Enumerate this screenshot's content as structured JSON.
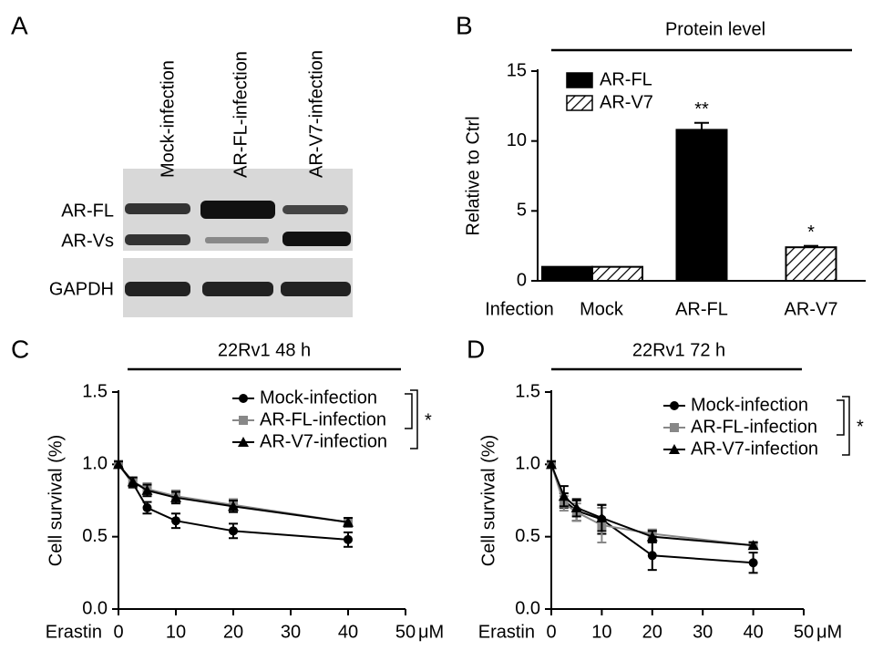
{
  "blot": {
    "panel_label": "A",
    "lanes": [
      "Mock-infection",
      "AR-FL-infection",
      "AR-V7-infection"
    ],
    "bands": [
      "AR-FL",
      "AR-Vs",
      "GAPDH"
    ]
  },
  "chart_data": [
    {
      "type": "bar",
      "panel_label": "B",
      "title": "Protein level",
      "ylabel": "Relative to Ctrl",
      "xlabel": "Infection",
      "categories": [
        "Mock",
        "AR-FL",
        "AR-V7"
      ],
      "series": [
        {
          "name": "AR-FL",
          "color": "#000000",
          "pattern": "solid",
          "values": [
            1,
            10.8,
            null
          ],
          "errors": [
            null,
            0.5,
            null
          ],
          "stars": [
            null,
            "**",
            null
          ]
        },
        {
          "name": "AR-V7",
          "color": "#000000",
          "pattern": "hatch",
          "values": [
            1,
            null,
            2.4
          ],
          "errors": [
            null,
            null,
            0.1
          ],
          "stars": [
            null,
            null,
            "*"
          ]
        }
      ],
      "ylim": [
        0,
        15
      ],
      "yticks": [
        0,
        5,
        10,
        15
      ]
    },
    {
      "type": "line",
      "panel_label": "C",
      "title": "22Rv1 48 h",
      "ylabel": "Cell survival (%)",
      "xlabel": "Erastin",
      "x_unit": "μM",
      "x": [
        0,
        2.5,
        5,
        10,
        20,
        40
      ],
      "series": [
        {
          "name": "Mock-infection",
          "color": "#000000",
          "marker": "circle",
          "values": [
            1,
            0.87,
            0.7,
            0.61,
            0.54,
            0.48
          ],
          "errors": [
            0.02,
            0.03,
            0.04,
            0.05,
            0.05,
            0.05
          ]
        },
        {
          "name": "AR-FL-infection",
          "color": "#888888",
          "marker": "square",
          "values": [
            1,
            0.88,
            0.83,
            0.78,
            0.72,
            0.6
          ],
          "errors": [
            0.02,
            0.03,
            0.04,
            0.04,
            0.04,
            0.03
          ]
        },
        {
          "name": "AR-V7-infection",
          "color": "#000000",
          "marker": "triangle",
          "values": [
            1,
            0.88,
            0.82,
            0.77,
            0.71,
            0.6
          ],
          "errors": [
            0.02,
            0.03,
            0.04,
            0.04,
            0.04,
            0.03
          ]
        }
      ],
      "significance": "*",
      "xlim": [
        0,
        50
      ],
      "xticks": [
        0,
        10,
        20,
        30,
        40,
        50
      ],
      "ylim": [
        0,
        1.5
      ],
      "yticks": [
        {
          "value": 0,
          "label": "0.0"
        },
        {
          "value": 0.5,
          "label": "0.5"
        },
        {
          "value": 1,
          "label": "1.0"
        },
        {
          "value": 1.5,
          "label": "1.5"
        }
      ]
    },
    {
      "type": "line",
      "panel_label": "D",
      "title": "22Rv1 72 h",
      "ylabel": "Cell survival (%)",
      "xlabel": "Erastin",
      "x_unit": "μM",
      "x": [
        0,
        2.5,
        5,
        10,
        20,
        40
      ],
      "series": [
        {
          "name": "Mock-infection",
          "color": "#000000",
          "marker": "circle",
          "values": [
            1,
            0.75,
            0.68,
            0.62,
            0.37,
            0.32
          ],
          "errors": [
            0.02,
            0.05,
            0.07,
            0.1,
            0.1,
            0.07
          ]
        },
        {
          "name": "AR-FL-infection",
          "color": "#888888",
          "marker": "square",
          "values": [
            1,
            0.73,
            0.67,
            0.58,
            0.52,
            0.44
          ],
          "errors": [
            0.02,
            0.05,
            0.06,
            0.12,
            0.03,
            0.02
          ]
        },
        {
          "name": "AR-V7-infection",
          "color": "#000000",
          "marker": "triangle",
          "values": [
            1,
            0.78,
            0.7,
            0.63,
            0.5,
            0.44
          ],
          "errors": [
            0.02,
            0.07,
            0.06,
            0.09,
            0.04,
            0.02
          ]
        }
      ],
      "significance": "*",
      "xlim": [
        0,
        50
      ],
      "xticks": [
        0,
        10,
        20,
        30,
        40,
        50
      ],
      "ylim": [
        0,
        1.5
      ],
      "yticks": [
        {
          "value": 0,
          "label": "0.0"
        },
        {
          "value": 0.5,
          "label": "0.5"
        },
        {
          "value": 1,
          "label": "1.0"
        },
        {
          "value": 1.5,
          "label": "1.5"
        }
      ]
    }
  ]
}
